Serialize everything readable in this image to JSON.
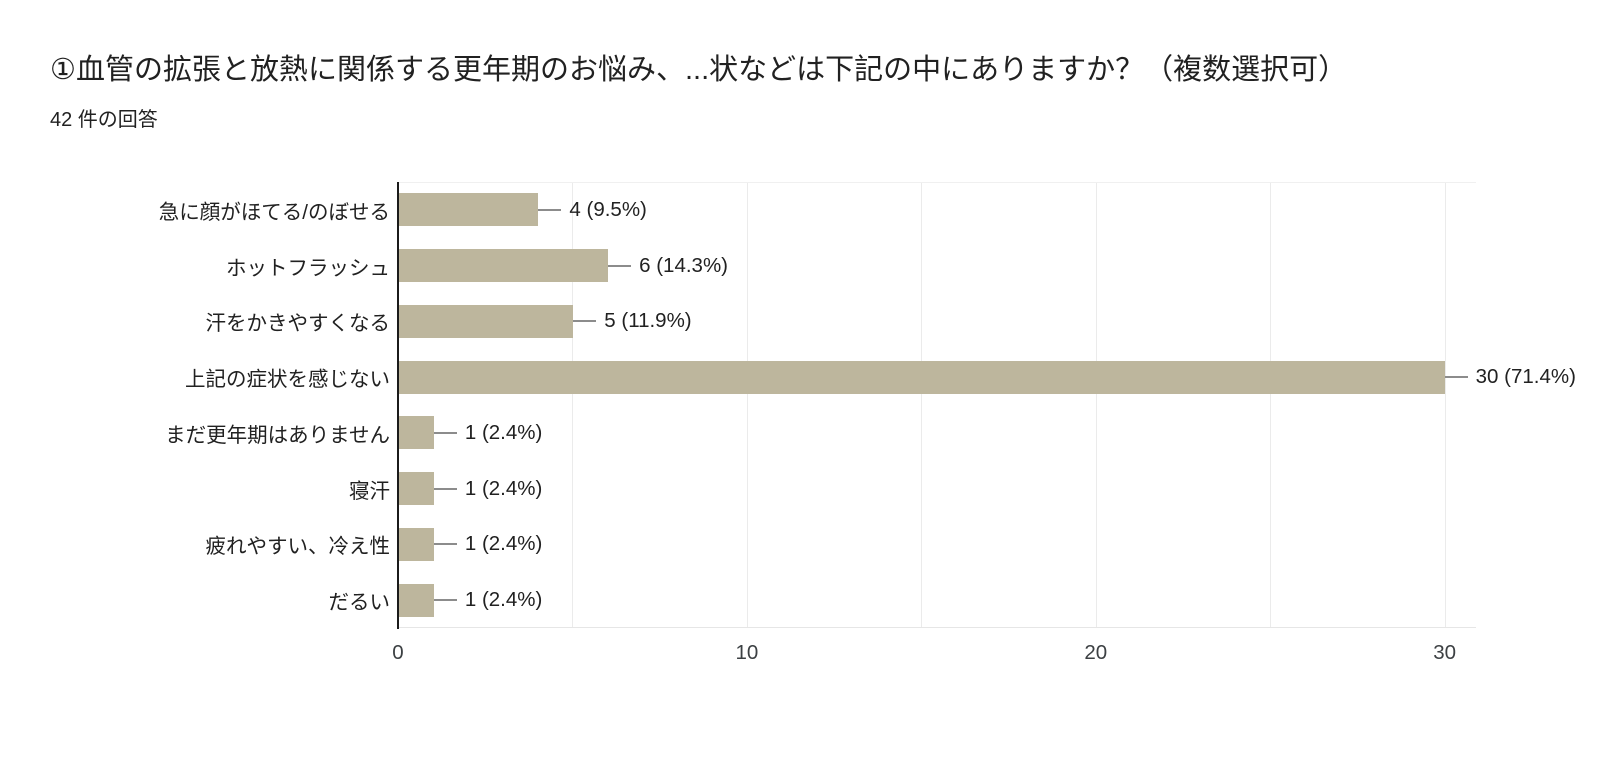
{
  "header": {
    "title": "①血管の拡張と放熱に関係する更年期のお悩み、...状などは下記の中にありますか？（複数選択可）",
    "response_count": "42 件の回答"
  },
  "chart_data": {
    "type": "bar",
    "orientation": "horizontal",
    "title": "①血管の拡張と放熱に関係する更年期のお悩み、...状などは下記の中にありますか？（複数選択可）",
    "subtitle": "42 件の回答",
    "categories": [
      "急に顔がほてる/のぼせる",
      "ホットフラッシュ",
      "汗をかきやすくなる",
      "上記の症状を感じない",
      "まだ更年期はありません",
      "寝汗",
      "疲れやすい、冷え性",
      "だるい"
    ],
    "values": [
      4,
      6,
      5,
      30,
      1,
      1,
      1,
      1
    ],
    "value_labels": [
      "4 (9.5%)",
      "6 (14.3%)",
      "5 (11.9%)",
      "30 (71.4%)",
      "1 (2.4%)",
      "1 (2.4%)",
      "1 (2.4%)",
      "1 (2.4%)"
    ],
    "percentages": [
      9.5,
      14.3,
      11.9,
      71.4,
      2.4,
      2.4,
      2.4,
      2.4
    ],
    "total_responses": 42,
    "xlabel": "",
    "ylabel": "",
    "xlim": [
      0,
      30.9
    ],
    "xticks": [
      0,
      10,
      20,
      30
    ],
    "gridlines": [
      5,
      10,
      15,
      20,
      25,
      30
    ],
    "grid": true,
    "legend": "none",
    "bar_color": "#bdb69d",
    "axis_color": "#1b1b1b",
    "text_color": "#212121"
  }
}
